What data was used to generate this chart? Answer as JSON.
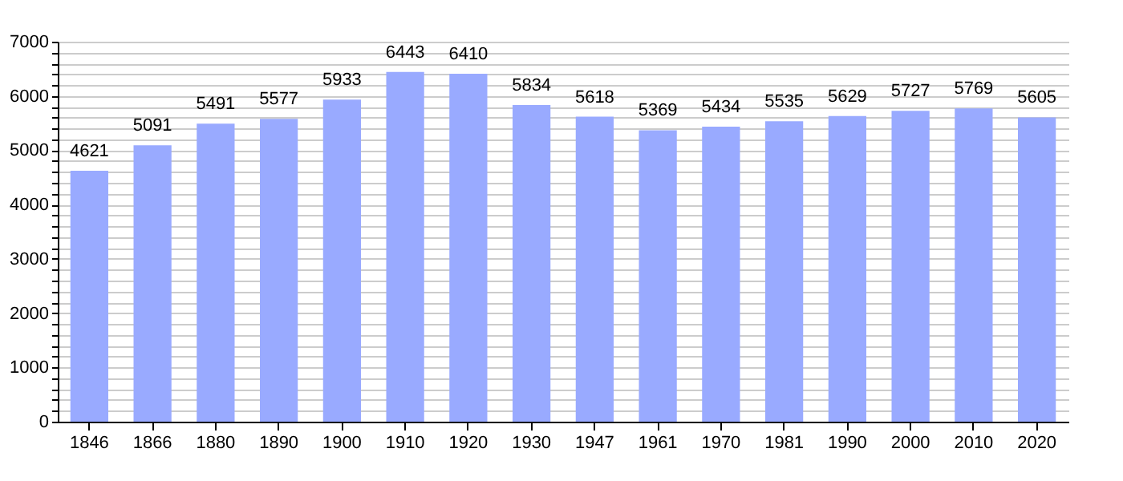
{
  "chart_data": {
    "type": "bar",
    "categories": [
      "1846",
      "1866",
      "1880",
      "1890",
      "1900",
      "1910",
      "1920",
      "1930",
      "1947",
      "1961",
      "1970",
      "1981",
      "1990",
      "2000",
      "2010",
      "2020"
    ],
    "values": [
      4621,
      5091,
      5491,
      5577,
      5933,
      6443,
      6410,
      5834,
      5618,
      5369,
      5434,
      5535,
      5629,
      5727,
      5769,
      5605
    ],
    "color": "#99aaff",
    "ylim": [
      0,
      7000
    ],
    "yticks": [
      0,
      {
        "value": 200,
        "label": null
      },
      {
        "value": 400,
        "label": null
      },
      {
        "value": 600,
        "label": null
      },
      {
        "value": 800,
        "label": null
      },
      1000,
      {
        "value": 1200,
        "label": null
      },
      {
        "value": 1400,
        "label": null
      },
      {
        "value": 1600,
        "label": null
      },
      {
        "value": 1800,
        "label": null
      },
      2000,
      {
        "value": 2200,
        "label": null
      },
      {
        "value": 2400,
        "label": null
      },
      {
        "value": 2600,
        "label": null
      },
      {
        "value": 2800,
        "label": null
      },
      3000,
      {
        "value": 3200,
        "label": null
      },
      {
        "value": 3400,
        "label": null
      },
      {
        "value": 3600,
        "label": null
      },
      {
        "value": 3800,
        "label": null
      },
      4000,
      {
        "value": 4200,
        "label": null
      },
      {
        "value": 4400,
        "label": null
      },
      {
        "value": 4600,
        "label": null
      },
      {
        "value": 4800,
        "label": null
      },
      5000,
      {
        "value": 5200,
        "label": null
      },
      {
        "value": 5400,
        "label": null
      },
      {
        "value": 5600,
        "label": null
      },
      {
        "value": 5800,
        "label": null
      },
      6000,
      {
        "value": 6200,
        "label": null
      },
      {
        "value": 6400,
        "label": null
      },
      {
        "value": 6600,
        "label": null
      },
      {
        "value": 6800,
        "label": null
      },
      7000
    ],
    "grid": true,
    "data_labels": true
  }
}
